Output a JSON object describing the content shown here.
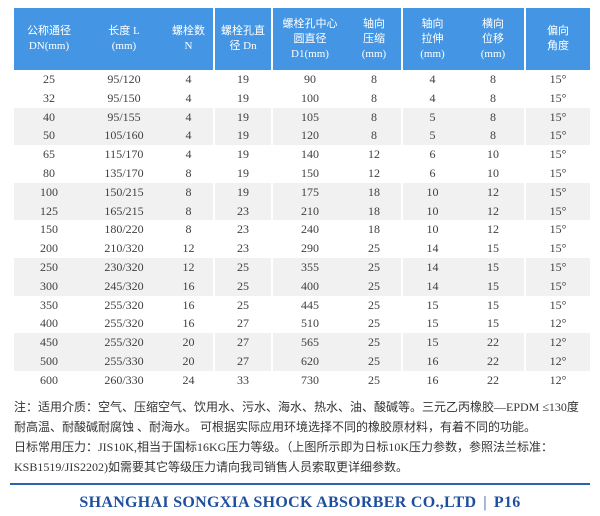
{
  "table": {
    "headers": [
      "公称通径\nDN(mm)",
      "长度 L\n(mm)",
      "螺栓数\nN",
      "螺栓孔直\n径 Dn",
      "螺栓孔中心\n圆直径\nD1(mm)",
      "轴向\n压缩\n(mm)",
      "轴向\n拉伸\n(mm)",
      "横向\n位移\n(mm)",
      "偏向\n角度"
    ],
    "rows": [
      [
        "25",
        "95/120",
        "4",
        "19",
        "90",
        "8",
        "4",
        "8",
        "15°"
      ],
      [
        "32",
        "95/150",
        "4",
        "19",
        "100",
        "8",
        "4",
        "8",
        "15°"
      ],
      [
        "40",
        "95/155",
        "4",
        "19",
        "105",
        "8",
        "5",
        "8",
        "15°"
      ],
      [
        "50",
        "105/160",
        "4",
        "19",
        "120",
        "8",
        "5",
        "8",
        "15°"
      ],
      [
        "65",
        "115/170",
        "4",
        "19",
        "140",
        "12",
        "6",
        "10",
        "15°"
      ],
      [
        "80",
        "135/170",
        "8",
        "19",
        "150",
        "12",
        "6",
        "10",
        "15°"
      ],
      [
        "100",
        "150/215",
        "8",
        "19",
        "175",
        "18",
        "10",
        "12",
        "15°"
      ],
      [
        "125",
        "165/215",
        "8",
        "23",
        "210",
        "18",
        "10",
        "12",
        "15°"
      ],
      [
        "150",
        "180/220",
        "8",
        "23",
        "240",
        "18",
        "10",
        "12",
        "15°"
      ],
      [
        "200",
        "210/320",
        "12",
        "23",
        "290",
        "25",
        "14",
        "15",
        "15°"
      ],
      [
        "250",
        "230/320",
        "12",
        "25",
        "355",
        "25",
        "14",
        "15",
        "15°"
      ],
      [
        "300",
        "245/320",
        "16",
        "25",
        "400",
        "25",
        "14",
        "15",
        "15°"
      ],
      [
        "350",
        "255/320",
        "16",
        "25",
        "445",
        "25",
        "15",
        "15",
        "15°"
      ],
      [
        "400",
        "255/320",
        "16",
        "27",
        "510",
        "25",
        "15",
        "15",
        "12°"
      ],
      [
        "450",
        "255/320",
        "20",
        "27",
        "565",
        "25",
        "15",
        "22",
        "12°"
      ],
      [
        "500",
        "255/330",
        "20",
        "27",
        "620",
        "25",
        "16",
        "22",
        "12°"
      ],
      [
        "600",
        "260/330",
        "24",
        "33",
        "730",
        "25",
        "16",
        "22",
        "12°"
      ]
    ]
  },
  "notes": {
    "para1": "注：适用介质：空气、压缩空气、饮用水、污水、海水、热水、油、酸碱等。三元乙丙橡胶—EPDM ≤130度 耐高温、耐酸碱耐腐蚀 、耐海水。 可根据实际应用环境选择不同的橡胶原材料，有着不同的功能。",
    "para2": "日标常用压力：JIS10K,相当于国标16KG压力等级。（上图所示即为日标10K压力参数，参照法兰标准：KSB1519/JIS2202)如需要其它等级压力请向我司销售人员索取更详细参数。"
  },
  "footer": {
    "company": "SHANGHAI SONGXIA SHOCK ABSORBER CO.,LTD",
    "separator": "|",
    "page": "P16"
  },
  "colors": {
    "header_bg": "#4496e4",
    "header_text": "#ffffff",
    "row_alt_bg": "#f1f1f1",
    "data_text": "#3f3f3f",
    "footer_text": "#1d4f9e",
    "footer_rule": "#2f62ac"
  }
}
